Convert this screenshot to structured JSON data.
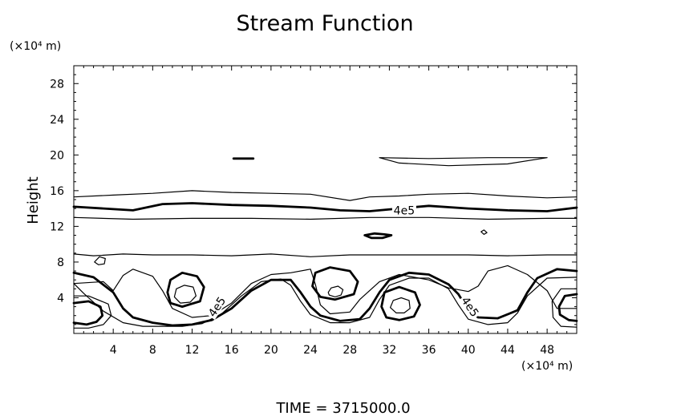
{
  "chart_data": {
    "type": "contour",
    "title": "Stream Function",
    "ylabel": "Height",
    "xunit": "(×10⁴ m)",
    "yunit": "(×10⁴ m)",
    "xlim": [
      0,
      51
    ],
    "ylim": [
      0,
      30
    ],
    "xticks": [
      4,
      8,
      12,
      16,
      20,
      24,
      28,
      32,
      36,
      40,
      44,
      48
    ],
    "yticks": [
      4,
      8,
      12,
      16,
      20,
      24,
      28
    ],
    "grid": false,
    "contour_labels": [
      {
        "text": "4e5",
        "x": 33.5,
        "y": 13.8,
        "angle": 0
      },
      {
        "text": "4e5",
        "x": 14.5,
        "y": 3.0,
        "angle": -56
      },
      {
        "text": "4e5",
        "x": 40.2,
        "y": 3.0,
        "angle": 56
      }
    ],
    "contours": [
      {
        "name": "",
        "level": "upper band upper edge",
        "weight": "thin",
        "points": [
          [
            0,
            15.3
          ],
          [
            4,
            15.5
          ],
          [
            8,
            15.7
          ],
          [
            12,
            16.0
          ],
          [
            16,
            15.8
          ],
          [
            20,
            15.7
          ],
          [
            24,
            15.6
          ],
          [
            28,
            14.9
          ],
          [
            30,
            15.3
          ],
          [
            33,
            15.4
          ],
          [
            36,
            15.6
          ],
          [
            40,
            15.7
          ],
          [
            44,
            15.4
          ],
          [
            48,
            15.2
          ],
          [
            51,
            15.3
          ]
        ]
      },
      {
        "name": "",
        "level": "4e5",
        "weight": "bold",
        "points": [
          [
            0,
            14.2
          ],
          [
            3,
            14.0
          ],
          [
            6,
            13.8
          ],
          [
            9,
            14.5
          ],
          [
            12,
            14.6
          ],
          [
            16,
            14.4
          ],
          [
            20,
            14.3
          ],
          [
            24,
            14.1
          ],
          [
            27,
            13.8
          ],
          [
            30,
            13.7
          ],
          [
            33,
            14.0
          ],
          [
            36,
            14.3
          ],
          [
            40,
            14.0
          ],
          [
            44,
            13.8
          ],
          [
            48,
            13.7
          ],
          [
            51,
            14.1
          ]
        ]
      },
      {
        "name": "",
        "level": "upper band lower edge",
        "weight": "thin",
        "points": [
          [
            0,
            13.0
          ],
          [
            6,
            12.8
          ],
          [
            12,
            12.9
          ],
          [
            18,
            12.9
          ],
          [
            24,
            12.8
          ],
          [
            30,
            13.0
          ],
          [
            36,
            13.0
          ],
          [
            42,
            12.8
          ],
          [
            48,
            12.9
          ],
          [
            51,
            12.9
          ]
        ]
      },
      {
        "name": "",
        "level": "upper patch",
        "weight": "thin",
        "points": [
          [
            31,
            19.7
          ],
          [
            36,
            19.6
          ],
          [
            42,
            19.7
          ],
          [
            48,
            19.7
          ],
          [
            44,
            19.0
          ],
          [
            38,
            18.8
          ],
          [
            33,
            19.1
          ],
          [
            31,
            19.7
          ]
        ]
      },
      {
        "name": "",
        "level": "small patch",
        "weight": "bold",
        "points": [
          [
            16.2,
            19.6
          ],
          [
            17.2,
            19.6
          ],
          [
            18.2,
            19.6
          ]
        ]
      },
      {
        "name": "",
        "level": "small patch",
        "weight": "bold",
        "points": [
          [
            29.5,
            11.0
          ],
          [
            30.5,
            11.2
          ],
          [
            31.5,
            11.1
          ],
          [
            32.2,
            11.0
          ],
          [
            31.3,
            10.7
          ],
          [
            30.2,
            10.7
          ],
          [
            29.5,
            11.0
          ]
        ]
      },
      {
        "name": "",
        "level": "middle wavy",
        "weight": "thin",
        "points": [
          [
            0,
            8.9
          ],
          [
            2,
            8.7
          ],
          [
            5,
            8.9
          ],
          [
            8,
            8.8
          ],
          [
            12,
            8.8
          ],
          [
            16,
            8.7
          ],
          [
            20,
            8.9
          ],
          [
            24,
            8.6
          ],
          [
            28,
            8.8
          ],
          [
            32,
            8.8
          ],
          [
            36,
            8.8
          ],
          [
            40,
            8.8
          ],
          [
            44,
            8.7
          ],
          [
            48,
            8.8
          ],
          [
            51,
            8.8
          ]
        ]
      },
      {
        "name": "",
        "level": "lower thin outer",
        "weight": "thin",
        "points": [
          [
            0,
            5.6
          ],
          [
            3,
            5.8
          ],
          [
            4,
            4.8
          ],
          [
            5,
            6.5
          ],
          [
            6,
            7.2
          ],
          [
            8,
            6.4
          ],
          [
            9,
            4.8
          ],
          [
            10,
            2.8
          ],
          [
            12,
            1.8
          ],
          [
            14,
            2.0
          ],
          [
            16,
            3.4
          ],
          [
            18,
            5.6
          ],
          [
            20,
            6.6
          ],
          [
            22,
            6.8
          ],
          [
            24,
            7.2
          ],
          [
            24.5,
            5.5
          ],
          [
            25,
            3.2
          ],
          [
            26,
            2.2
          ],
          [
            28,
            2.4
          ],
          [
            29,
            3.8
          ],
          [
            31,
            5.8
          ],
          [
            33,
            6.6
          ],
          [
            36,
            6.0
          ],
          [
            38,
            5.1
          ],
          [
            40,
            4.7
          ],
          [
            41,
            5.3
          ],
          [
            42,
            7.0
          ],
          [
            44,
            7.6
          ],
          [
            46,
            6.6
          ],
          [
            48,
            4.8
          ],
          [
            49,
            2.8
          ],
          [
            51,
            2.8
          ]
        ]
      },
      {
        "name": "",
        "level": "4e5",
        "weight": "bold",
        "points": [
          [
            0,
            6.8
          ],
          [
            2,
            6.3
          ],
          [
            4,
            4.6
          ],
          [
            5,
            2.8
          ],
          [
            6,
            1.8
          ],
          [
            8,
            1.2
          ],
          [
            10,
            0.9
          ],
          [
            12,
            1.0
          ],
          [
            14,
            1.5
          ],
          [
            16,
            2.8
          ],
          [
            18,
            4.8
          ],
          [
            20,
            6.0
          ],
          [
            22,
            6.0
          ],
          [
            23,
            4.6
          ],
          [
            24,
            3.0
          ],
          [
            25,
            2.0
          ],
          [
            27,
            1.4
          ],
          [
            29,
            1.6
          ],
          [
            30,
            2.8
          ],
          [
            31,
            4.6
          ],
          [
            32,
            6.0
          ],
          [
            34,
            6.8
          ],
          [
            36,
            6.6
          ],
          [
            38,
            5.5
          ],
          [
            39,
            4.4
          ],
          [
            40,
            2.6
          ],
          [
            41,
            1.8
          ],
          [
            43,
            1.7
          ],
          [
            45,
            2.6
          ],
          [
            46,
            4.6
          ],
          [
            47,
            6.2
          ],
          [
            49,
            7.2
          ],
          [
            51,
            7.0
          ]
        ]
      },
      {
        "name": "",
        "level": "lower thin inner",
        "weight": "thin",
        "points": [
          [
            0,
            5.6
          ],
          [
            1,
            4.5
          ],
          [
            3,
            2.5
          ],
          [
            5,
            1.2
          ],
          [
            7,
            0.8
          ],
          [
            9,
            0.8
          ],
          [
            11,
            0.8
          ],
          [
            13,
            1.1
          ],
          [
            15,
            2.2
          ],
          [
            17,
            4.2
          ],
          [
            19,
            5.8
          ],
          [
            21,
            6.1
          ],
          [
            22,
            5.4
          ],
          [
            23,
            3.6
          ],
          [
            24,
            2.1
          ],
          [
            26,
            1.2
          ],
          [
            28,
            1.2
          ],
          [
            30,
            1.8
          ],
          [
            31,
            3.8
          ],
          [
            32,
            5.4
          ],
          [
            34,
            6.2
          ],
          [
            36,
            6.2
          ],
          [
            38,
            5.0
          ],
          [
            39,
            3.2
          ],
          [
            40,
            1.6
          ],
          [
            42,
            1.0
          ],
          [
            44,
            1.2
          ],
          [
            45,
            2.3
          ],
          [
            46,
            4.2
          ],
          [
            48,
            6.2
          ],
          [
            51,
            6.3
          ]
        ]
      },
      {
        "name": "",
        "level": "vortex outer",
        "weight": "bold",
        "points": [
          [
            9.5,
            4.6
          ],
          [
            9.8,
            6.0
          ],
          [
            11,
            6.8
          ],
          [
            12.5,
            6.4
          ],
          [
            13.2,
            5.2
          ],
          [
            12.8,
            3.6
          ],
          [
            11,
            3.0
          ],
          [
            9.8,
            3.4
          ],
          [
            9.5,
            4.6
          ]
        ]
      },
      {
        "name": "",
        "level": "vortex inner",
        "weight": "thin",
        "points": [
          [
            10.2,
            4.1
          ],
          [
            10.4,
            5.0
          ],
          [
            11.2,
            5.4
          ],
          [
            12.1,
            5.2
          ],
          [
            12.4,
            4.2
          ],
          [
            11.8,
            3.5
          ],
          [
            10.8,
            3.4
          ],
          [
            10.2,
            4.1
          ]
        ]
      },
      {
        "name": "",
        "level": "vortex outer",
        "weight": "bold",
        "points": [
          [
            24.2,
            5.3
          ],
          [
            24.5,
            6.8
          ],
          [
            26.0,
            7.4
          ],
          [
            28.0,
            7.0
          ],
          [
            28.8,
            5.8
          ],
          [
            28.4,
            4.4
          ],
          [
            26.5,
            3.8
          ],
          [
            25.0,
            4.1
          ],
          [
            24.2,
            5.3
          ]
        ]
      },
      {
        "name": "",
        "level": "vortex inner",
        "weight": "thin",
        "points": [
          [
            25.8,
            4.6
          ],
          [
            26.1,
            5.1
          ],
          [
            26.8,
            5.3
          ],
          [
            27.3,
            4.9
          ],
          [
            27.1,
            4.3
          ],
          [
            26.5,
            4.1
          ],
          [
            25.9,
            4.3
          ],
          [
            25.8,
            4.6
          ]
        ]
      },
      {
        "name": "",
        "level": "vortex outer",
        "weight": "bold",
        "points": [
          [
            31.2,
            3.0
          ],
          [
            31.5,
            4.6
          ],
          [
            33.0,
            5.2
          ],
          [
            34.6,
            4.6
          ],
          [
            35.1,
            3.2
          ],
          [
            34.5,
            1.9
          ],
          [
            33.0,
            1.5
          ],
          [
            31.7,
            1.8
          ],
          [
            31.2,
            3.0
          ]
        ]
      },
      {
        "name": "",
        "level": "vortex inner",
        "weight": "thin",
        "points": [
          [
            32.1,
            2.9
          ],
          [
            32.4,
            3.7
          ],
          [
            33.2,
            4.0
          ],
          [
            34.0,
            3.7
          ],
          [
            34.1,
            2.8
          ],
          [
            33.5,
            2.3
          ],
          [
            32.7,
            2.3
          ],
          [
            32.1,
            2.9
          ]
        ]
      },
      {
        "name": "",
        "level": "left vortex",
        "weight": "bold",
        "points": [
          [
            0,
            3.4
          ],
          [
            1.5,
            3.6
          ],
          [
            2.7,
            3.0
          ],
          [
            2.9,
            2.0
          ],
          [
            2.3,
            1.3
          ],
          [
            1.3,
            1.0
          ],
          [
            0,
            1.2
          ]
        ]
      },
      {
        "name": "",
        "level": "left vortex",
        "weight": "thin",
        "points": [
          [
            0,
            4.2
          ],
          [
            1.5,
            4.2
          ],
          [
            3.5,
            3.3
          ],
          [
            3.8,
            2.0
          ],
          [
            3.0,
            1.0
          ],
          [
            1.5,
            0.6
          ],
          [
            0,
            0.6
          ]
        ]
      },
      {
        "name": "",
        "level": "right vortex",
        "weight": "bold",
        "points": [
          [
            51,
            4.4
          ],
          [
            49.8,
            4.2
          ],
          [
            49.2,
            3.0
          ],
          [
            49.3,
            2.1
          ],
          [
            50.2,
            1.5
          ],
          [
            51,
            1.4
          ]
        ]
      },
      {
        "name": "",
        "level": "right vortex",
        "weight": "thin",
        "points": [
          [
            51,
            5.0
          ],
          [
            49.4,
            5.0
          ],
          [
            48.5,
            3.6
          ],
          [
            48.6,
            1.8
          ],
          [
            49.4,
            0.8
          ],
          [
            51,
            0.7
          ]
        ]
      },
      {
        "name": "",
        "level": "small blob",
        "weight": "thin",
        "points": [
          [
            2.1,
            8.0
          ],
          [
            2.6,
            8.6
          ],
          [
            3.2,
            8.4
          ],
          [
            3.1,
            7.8
          ],
          [
            2.5,
            7.7
          ],
          [
            2.1,
            8.0
          ]
        ]
      },
      {
        "name": "",
        "level": "small blob",
        "weight": "thin",
        "points": [
          [
            41.3,
            11.4
          ],
          [
            41.6,
            11.6
          ],
          [
            41.9,
            11.3
          ],
          [
            41.6,
            11.1
          ],
          [
            41.3,
            11.4
          ]
        ]
      }
    ]
  },
  "footer": {
    "time_label": "TIME",
    "time_value": "3715000.0"
  }
}
